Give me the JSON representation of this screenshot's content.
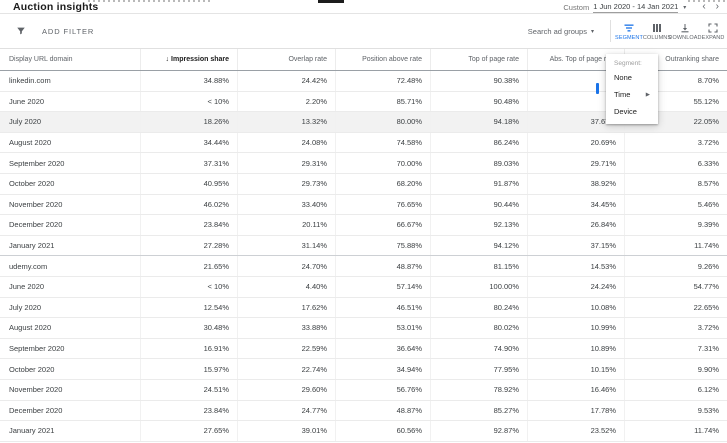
{
  "page": {
    "title": "Auction insights",
    "date_range": {
      "prefix": "Custom",
      "value": "1 Jun 2020 - 14 Jan 2021"
    }
  },
  "toolbar": {
    "add_filter": "ADD FILTER",
    "search_label": "Search ad groups",
    "buttons": [
      {
        "label": "SEGMENT",
        "active": true
      },
      {
        "label": "COLUMNS",
        "active": false
      },
      {
        "label": "DOWNLOAD",
        "active": false
      },
      {
        "label": "EXPAND",
        "active": false
      }
    ]
  },
  "segment_menu": {
    "header": "Segment:",
    "items": [
      "None",
      "Time",
      "Device"
    ]
  },
  "colors": {
    "accent_blue": "#1a73e8",
    "icon_gray": "#5f6368",
    "row_highlight": "#f2f2f2"
  },
  "table": {
    "columns": [
      {
        "label": "Display URL domain",
        "sorted": false
      },
      {
        "label": "Impression share",
        "sorted": true
      },
      {
        "label": "Overlap rate",
        "sorted": false
      },
      {
        "label": "Position above rate",
        "sorted": false
      },
      {
        "label": "Top of page rate",
        "sorted": false
      },
      {
        "label": "Abs. Top of page rate",
        "sorted": false
      },
      {
        "label": "Outranking share",
        "sorted": false
      }
    ],
    "rows": [
      {
        "label": "linkedin.com",
        "type": "domain",
        "highlight": false,
        "values": [
          "34.88%",
          "24.42%",
          "72.48%",
          "90.38%",
          "",
          "8.70%"
        ]
      },
      {
        "label": "June 2020",
        "type": "period",
        "highlight": false,
        "values": [
          "< 10%",
          "2.20%",
          "85.71%",
          "90.48%",
          "",
          "55.12%"
        ]
      },
      {
        "label": "July 2020",
        "type": "period",
        "highlight": true,
        "values": [
          "18.26%",
          "13.32%",
          "80.00%",
          "94.18%",
          "37.67%",
          "22.05%"
        ]
      },
      {
        "label": "August 2020",
        "type": "period",
        "highlight": false,
        "values": [
          "34.44%",
          "24.08%",
          "74.58%",
          "86.24%",
          "20.69%",
          "3.72%"
        ]
      },
      {
        "label": "September 2020",
        "type": "period",
        "highlight": false,
        "values": [
          "37.31%",
          "29.31%",
          "70.00%",
          "89.03%",
          "29.71%",
          "6.33%"
        ]
      },
      {
        "label": "October 2020",
        "type": "period",
        "highlight": false,
        "values": [
          "40.95%",
          "29.73%",
          "68.20%",
          "91.87%",
          "38.92%",
          "8.57%"
        ]
      },
      {
        "label": "November 2020",
        "type": "period",
        "highlight": false,
        "values": [
          "46.02%",
          "33.40%",
          "76.65%",
          "90.44%",
          "34.45%",
          "5.46%"
        ]
      },
      {
        "label": "December 2020",
        "type": "period",
        "highlight": false,
        "values": [
          "23.84%",
          "20.11%",
          "66.67%",
          "92.13%",
          "26.84%",
          "9.39%"
        ]
      },
      {
        "label": "January 2021",
        "type": "period",
        "highlight": false,
        "values": [
          "27.28%",
          "31.14%",
          "75.88%",
          "94.12%",
          "37.15%",
          "11.74%"
        ]
      },
      {
        "label": "udemy.com",
        "type": "domain",
        "highlight": false,
        "values": [
          "21.65%",
          "24.70%",
          "48.87%",
          "81.15%",
          "14.53%",
          "9.26%"
        ]
      },
      {
        "label": "June 2020",
        "type": "period",
        "highlight": false,
        "values": [
          "< 10%",
          "4.40%",
          "57.14%",
          "100.00%",
          "24.24%",
          "54.77%"
        ]
      },
      {
        "label": "July 2020",
        "type": "period",
        "highlight": false,
        "values": [
          "12.54%",
          "17.62%",
          "46.51%",
          "80.24%",
          "10.08%",
          "22.65%"
        ]
      },
      {
        "label": "August 2020",
        "type": "period",
        "highlight": false,
        "values": [
          "30.48%",
          "33.88%",
          "53.01%",
          "80.02%",
          "10.99%",
          "3.72%"
        ]
      },
      {
        "label": "September 2020",
        "type": "period",
        "highlight": false,
        "values": [
          "16.91%",
          "22.59%",
          "36.64%",
          "74.90%",
          "10.89%",
          "7.31%"
        ]
      },
      {
        "label": "October 2020",
        "type": "period",
        "highlight": false,
        "values": [
          "15.97%",
          "22.74%",
          "34.94%",
          "77.95%",
          "10.15%",
          "9.90%"
        ]
      },
      {
        "label": "November 2020",
        "type": "period",
        "highlight": false,
        "values": [
          "24.51%",
          "29.60%",
          "56.76%",
          "78.92%",
          "16.46%",
          "6.12%"
        ]
      },
      {
        "label": "December 2020",
        "type": "period",
        "highlight": false,
        "values": [
          "23.84%",
          "24.77%",
          "48.87%",
          "85.27%",
          "17.78%",
          "9.53%"
        ]
      },
      {
        "label": "January 2021",
        "type": "period",
        "highlight": false,
        "values": [
          "27.65%",
          "39.01%",
          "60.56%",
          "92.87%",
          "23.52%",
          "11.74%"
        ]
      }
    ]
  }
}
